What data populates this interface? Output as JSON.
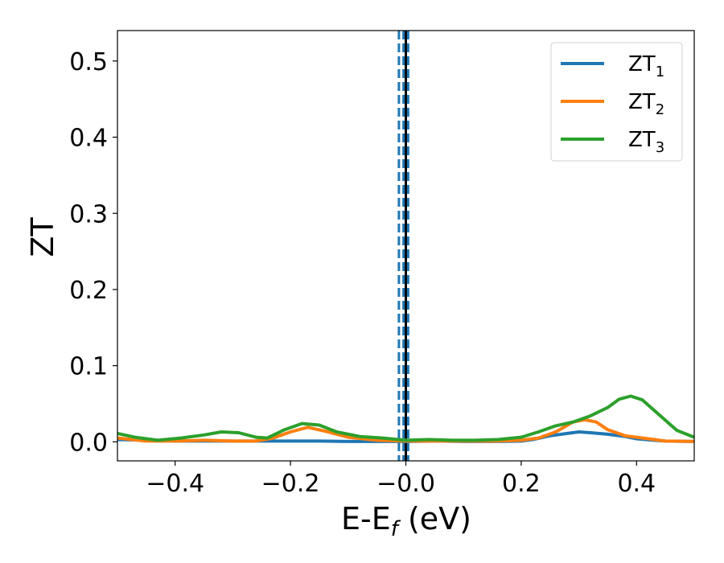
{
  "chart_data": {
    "type": "line",
    "title": "",
    "xlabel": {
      "main": "E-E",
      "sub": "f",
      "suffix": " (eV)"
    },
    "ylabel": "ZT",
    "xlim": [
      -0.5,
      0.5
    ],
    "ylim": [
      -0.025,
      0.54
    ],
    "x_ticks": [
      {
        "value": -0.4,
        "label": "−0.4"
      },
      {
        "value": -0.2,
        "label": "−0.2"
      },
      {
        "value": 0.0,
        "label": "−0.0"
      },
      {
        "value": 0.2,
        "label": "0.2"
      },
      {
        "value": 0.4,
        "label": "0.4"
      }
    ],
    "y_ticks": [
      {
        "value": 0.0,
        "label": "0.0"
      },
      {
        "value": 0.1,
        "label": "0.1"
      },
      {
        "value": 0.2,
        "label": "0.2"
      },
      {
        "value": 0.3,
        "label": "0.3"
      },
      {
        "value": 0.4,
        "label": "0.4"
      },
      {
        "value": 0.5,
        "label": "0.5"
      }
    ],
    "grid": false,
    "legend_position": "top-right",
    "series": [
      {
        "name": "ZT",
        "sub": "1",
        "color": "#1f77b4",
        "points": [
          [
            -0.5,
            0.003
          ],
          [
            -0.45,
            0.002
          ],
          [
            -0.4,
            0.001
          ],
          [
            -0.35,
            0.001
          ],
          [
            -0.3,
            0.001
          ],
          [
            -0.25,
            0.001
          ],
          [
            -0.2,
            0.001
          ],
          [
            -0.15,
            0.001
          ],
          [
            -0.1,
            0.0005
          ],
          [
            -0.05,
            0.0005
          ],
          [
            0.0,
            0.0005
          ],
          [
            0.05,
            0.001
          ],
          [
            0.1,
            0.0005
          ],
          [
            0.15,
            0.0005
          ],
          [
            0.2,
            0.001
          ],
          [
            0.22,
            0.003
          ],
          [
            0.25,
            0.008
          ],
          [
            0.28,
            0.011
          ],
          [
            0.3,
            0.013
          ],
          [
            0.32,
            0.012
          ],
          [
            0.35,
            0.01
          ],
          [
            0.38,
            0.007
          ],
          [
            0.4,
            0.004
          ],
          [
            0.43,
            0.002
          ],
          [
            0.45,
            0.001
          ],
          [
            0.5,
            0.0005
          ]
        ]
      },
      {
        "name": "ZT",
        "sub": "2",
        "color": "#ff7f0e",
        "points": [
          [
            -0.5,
            0.005
          ],
          [
            -0.45,
            0.001
          ],
          [
            -0.4,
            0.001
          ],
          [
            -0.35,
            0.002
          ],
          [
            -0.3,
            0.001
          ],
          [
            -0.26,
            0.001
          ],
          [
            -0.23,
            0.005
          ],
          [
            -0.2,
            0.013
          ],
          [
            -0.17,
            0.019
          ],
          [
            -0.14,
            0.014
          ],
          [
            -0.1,
            0.006
          ],
          [
            -0.05,
            0.002
          ],
          [
            0.0,
            0.001
          ],
          [
            0.05,
            0.001
          ],
          [
            0.1,
            0.001
          ],
          [
            0.15,
            0.001
          ],
          [
            0.2,
            0.002
          ],
          [
            0.23,
            0.005
          ],
          [
            0.26,
            0.013
          ],
          [
            0.29,
            0.026
          ],
          [
            0.31,
            0.029
          ],
          [
            0.33,
            0.026
          ],
          [
            0.35,
            0.016
          ],
          [
            0.38,
            0.008
          ],
          [
            0.42,
            0.004
          ],
          [
            0.45,
            0.001
          ],
          [
            0.5,
            0.0005
          ]
        ]
      },
      {
        "name": "ZT",
        "sub": "3",
        "color": "#2ca02c",
        "points": [
          [
            -0.5,
            0.011
          ],
          [
            -0.47,
            0.006
          ],
          [
            -0.43,
            0.002
          ],
          [
            -0.39,
            0.005
          ],
          [
            -0.35,
            0.009
          ],
          [
            -0.32,
            0.013
          ],
          [
            -0.29,
            0.012
          ],
          [
            -0.26,
            0.006
          ],
          [
            -0.24,
            0.005
          ],
          [
            -0.21,
            0.016
          ],
          [
            -0.18,
            0.024
          ],
          [
            -0.15,
            0.022
          ],
          [
            -0.12,
            0.013
          ],
          [
            -0.08,
            0.007
          ],
          [
            -0.04,
            0.005
          ],
          [
            0.0,
            0.002
          ],
          [
            0.04,
            0.003
          ],
          [
            0.08,
            0.002
          ],
          [
            0.12,
            0.002
          ],
          [
            0.16,
            0.003
          ],
          [
            0.2,
            0.006
          ],
          [
            0.23,
            0.013
          ],
          [
            0.26,
            0.021
          ],
          [
            0.29,
            0.026
          ],
          [
            0.32,
            0.034
          ],
          [
            0.35,
            0.045
          ],
          [
            0.37,
            0.056
          ],
          [
            0.39,
            0.06
          ],
          [
            0.41,
            0.055
          ],
          [
            0.44,
            0.035
          ],
          [
            0.47,
            0.015
          ],
          [
            0.5,
            0.006
          ]
        ]
      }
    ],
    "vertical_lines": [
      {
        "x": 0.0,
        "style": "solid",
        "color": "#000000"
      },
      {
        "x": -0.012,
        "style": "dashed",
        "color": "#1f77b4"
      },
      {
        "x": -0.004,
        "style": "dashed",
        "color": "#1f77b4"
      },
      {
        "x": 0.004,
        "style": "dashed",
        "color": "#1f77b4"
      }
    ]
  }
}
